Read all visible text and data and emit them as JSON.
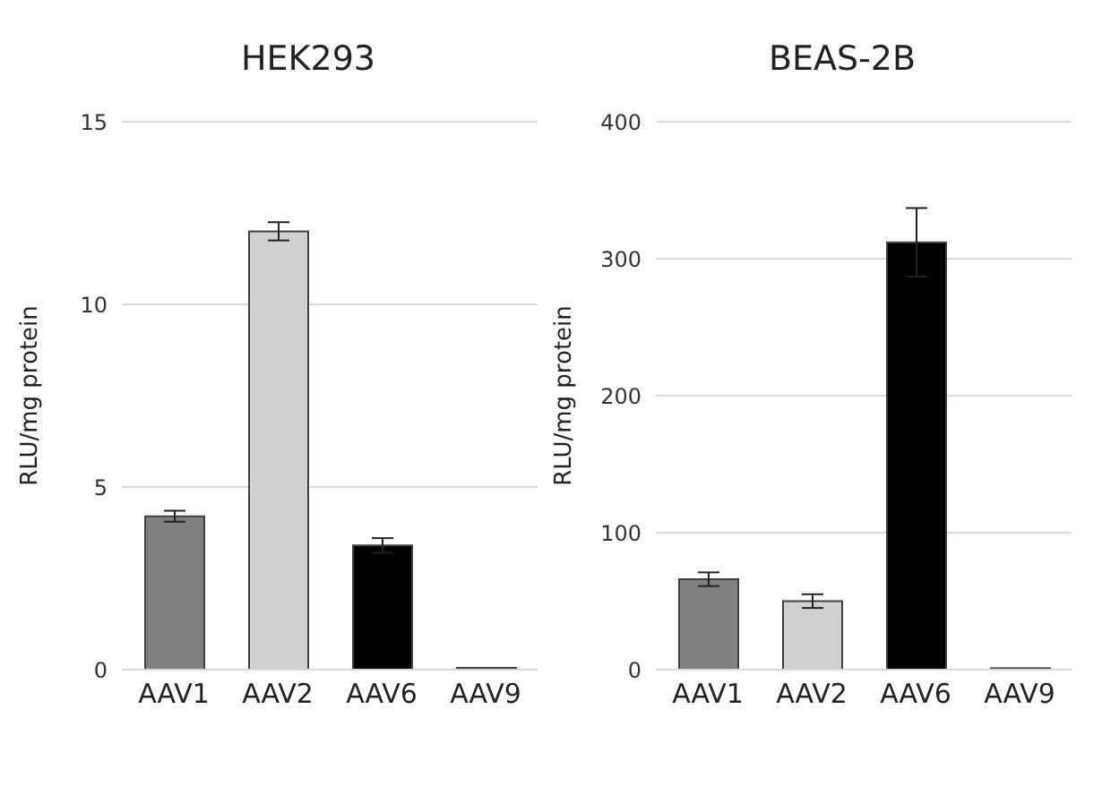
{
  "chart_data": [
    {
      "type": "bar",
      "title": "HEK293",
      "ylabel": "RLU/mg protein",
      "categories": [
        "AAV1",
        "AAV2",
        "AAV6",
        "AAV9"
      ],
      "values": [
        4.2,
        12.0,
        3.4,
        0.05
      ],
      "errors": [
        0.15,
        0.25,
        0.2,
        null
      ],
      "colors": [
        "#808080",
        "#d0d0d0",
        "#000000",
        "#000000"
      ],
      "ylim": [
        0,
        15
      ],
      "yticks": [
        0,
        5,
        10,
        15
      ],
      "grid": "y"
    },
    {
      "type": "bar",
      "title": "BEAS-2B",
      "ylabel": "RLU/mg protein",
      "categories": [
        "AAV1",
        "AAV2",
        "AAV6",
        "AAV9"
      ],
      "values": [
        66,
        50,
        312,
        1
      ],
      "errors": [
        5,
        5,
        25,
        null
      ],
      "colors": [
        "#808080",
        "#d0d0d0",
        "#000000",
        "#000000"
      ],
      "ylim": [
        0,
        400
      ],
      "yticks": [
        0,
        100,
        200,
        300,
        400
      ],
      "grid": "y"
    }
  ]
}
